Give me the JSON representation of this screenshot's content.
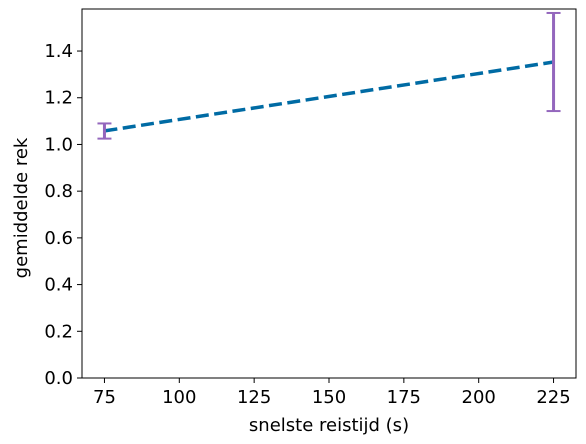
{
  "chart_data": {
    "type": "line",
    "xlabel": "snelste reistijd (s)",
    "ylabel": "gemiddelde rek",
    "xlim": [
      67.5,
      232.5
    ],
    "ylim": [
      0.0,
      1.58
    ],
    "x_ticks": [
      75,
      100,
      125,
      150,
      175,
      200,
      225
    ],
    "y_ticks": [
      0.0,
      0.2,
      0.4,
      0.6,
      0.8,
      1.0,
      1.2,
      1.4
    ],
    "x_tick_labels": [
      "75",
      "100",
      "125",
      "150",
      "175",
      "200",
      "225"
    ],
    "y_tick_labels": [
      "0.0",
      "0.2",
      "0.4",
      "0.6",
      "0.8",
      "1.0",
      "1.2",
      "1.4"
    ],
    "grid": false,
    "series": [
      {
        "x": [
          75,
          225
        ],
        "y": [
          1.058,
          1.353
        ],
        "style": "dashed",
        "color": "#006ba4"
      }
    ],
    "error_bars": [
      {
        "x": 75,
        "low": 1.025,
        "high": 1.09,
        "color": "#9467bd"
      },
      {
        "x": 225,
        "low": 1.143,
        "high": 1.563,
        "color": "#9467bd"
      }
    ]
  }
}
